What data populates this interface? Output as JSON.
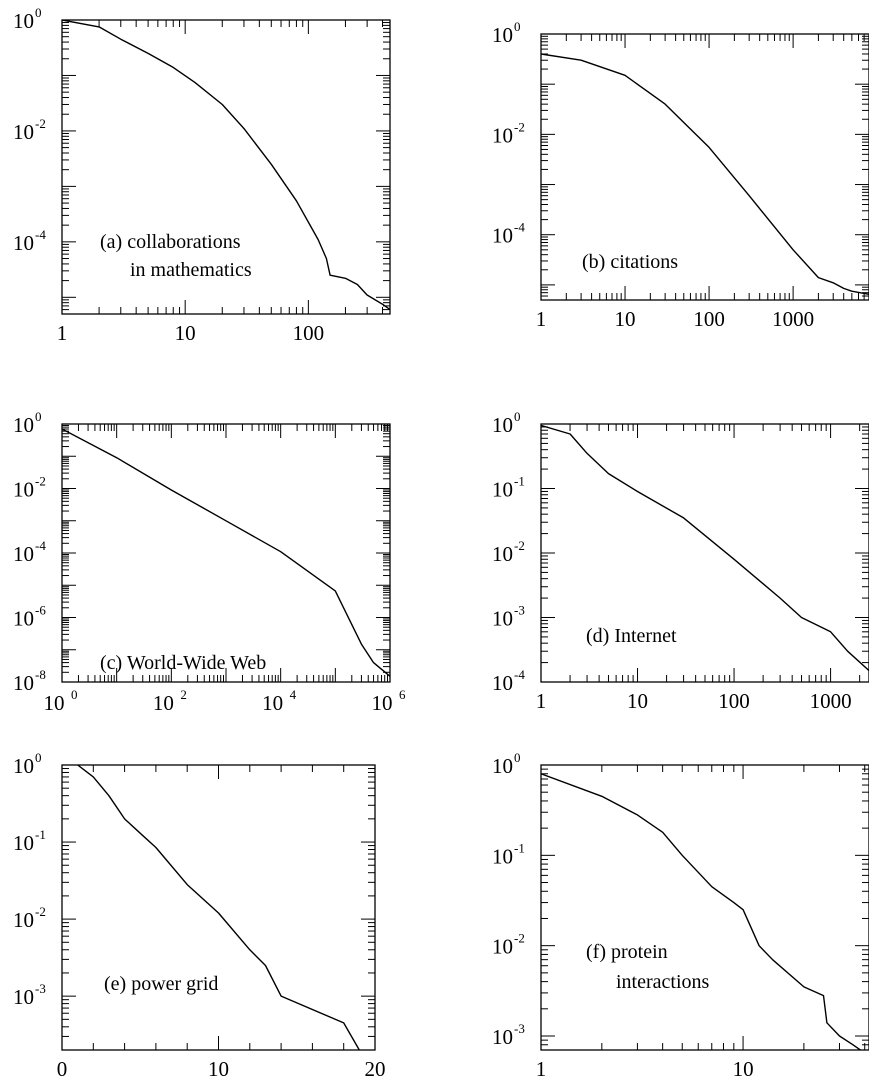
{
  "chart_data": [
    {
      "id": "a",
      "type": "line",
      "xscale": "log",
      "yscale": "log",
      "xlim": [
        1,
        460
      ],
      "ylim": [
        5e-06,
        1
      ],
      "xticks": [
        {
          "v": 1,
          "label": "1"
        },
        {
          "v": 10,
          "label": "10"
        },
        {
          "v": 100,
          "label": "100"
        }
      ],
      "yticks": [
        {
          "v": 1,
          "base": "10",
          "exp": "0"
        },
        {
          "v": 0.01,
          "base": "10",
          "exp": "-2"
        },
        {
          "v": 0.0001,
          "base": "10",
          "exp": "-4"
        }
      ],
      "annotation": [
        "(a) collaborations",
        "in mathematics"
      ],
      "x": [
        1,
        2,
        3,
        5,
        8,
        12,
        20,
        30,
        50,
        80,
        120,
        140,
        150,
        200,
        250,
        300,
        400,
        460
      ],
      "y": [
        1,
        0.75,
        0.45,
        0.25,
        0.14,
        0.075,
        0.03,
        0.011,
        0.0025,
        0.00055,
        0.00011,
        5e-05,
        2.5e-05,
        2.2e-05,
        1.7e-05,
        1.1e-05,
        7.5e-06,
        6e-06
      ]
    },
    {
      "id": "b",
      "type": "line",
      "xscale": "log",
      "yscale": "log",
      "xlim": [
        1,
        8000
      ],
      "ylim": [
        5e-06,
        1
      ],
      "xticks": [
        {
          "v": 1,
          "label": "1"
        },
        {
          "v": 10,
          "label": "10"
        },
        {
          "v": 100,
          "label": "100"
        },
        {
          "v": 1000,
          "label": "1000"
        }
      ],
      "yticks": [
        {
          "v": 1,
          "base": "10",
          "exp": "0"
        },
        {
          "v": 0.01,
          "base": "10",
          "exp": "-2"
        },
        {
          "v": 0.0001,
          "base": "10",
          "exp": "-4"
        }
      ],
      "annotation": [
        "(b) citations"
      ],
      "x": [
        1,
        3,
        10,
        30,
        100,
        300,
        1000,
        2000,
        3000,
        4000,
        5000,
        8000
      ],
      "y": [
        0.4,
        0.3,
        0.15,
        0.04,
        0.0055,
        0.0006,
        5e-05,
        1.4e-05,
        1.1e-05,
        8.5e-06,
        7.5e-06,
        6.5e-06
      ]
    },
    {
      "id": "c",
      "type": "line",
      "xscale": "log",
      "yscale": "log",
      "xlim": [
        1,
        1000000
      ],
      "ylim": [
        1e-08,
        1
      ],
      "xticks": [
        {
          "v": 1,
          "base": "10",
          "exp": "0"
        },
        {
          "v": 100,
          "base": "10",
          "exp": "2"
        },
        {
          "v": 10000,
          "base": "10",
          "exp": "4"
        },
        {
          "v": 1000000,
          "base": "10",
          "exp": "6"
        }
      ],
      "yticks": [
        {
          "v": 1,
          "base": "10",
          "exp": "0"
        },
        {
          "v": 0.01,
          "base": "10",
          "exp": "-2"
        },
        {
          "v": 0.0001,
          "base": "10",
          "exp": "-4"
        },
        {
          "v": 1e-06,
          "base": "10",
          "exp": "-6"
        },
        {
          "v": 1e-08,
          "base": "10",
          "exp": "-8"
        }
      ],
      "annotation": [
        "(c) World-Wide Web"
      ],
      "x": [
        1,
        10,
        100,
        1000,
        10000,
        100000,
        300000,
        500000,
        1000000
      ],
      "y": [
        0.7,
        0.09,
        0.009,
        0.001,
        0.00011,
        6.7e-06,
        1.5e-07,
        4e-08,
        1.5e-08
      ]
    },
    {
      "id": "d",
      "type": "line",
      "xscale": "log",
      "yscale": "log",
      "xlim": [
        1,
        2500
      ],
      "ylim": [
        0.0001,
        1
      ],
      "xticks": [
        {
          "v": 1,
          "label": "1"
        },
        {
          "v": 10,
          "label": "10"
        },
        {
          "v": 100,
          "label": "100"
        },
        {
          "v": 1000,
          "label": "1000"
        }
      ],
      "yticks": [
        {
          "v": 1,
          "base": "10",
          "exp": "0"
        },
        {
          "v": 0.1,
          "base": "10",
          "exp": "-1"
        },
        {
          "v": 0.01,
          "base": "10",
          "exp": "-2"
        },
        {
          "v": 0.001,
          "base": "10",
          "exp": "-3"
        },
        {
          "v": 0.0001,
          "base": "10",
          "exp": "-4"
        }
      ],
      "annotation": [
        "(d) Internet"
      ],
      "x": [
        1,
        2,
        3,
        5,
        10,
        30,
        100,
        300,
        500,
        1000,
        1500,
        2500
      ],
      "y": [
        0.95,
        0.7,
        0.35,
        0.17,
        0.09,
        0.035,
        0.008,
        0.002,
        0.001,
        0.0006,
        0.0003,
        0.00015
      ]
    },
    {
      "id": "e",
      "type": "line",
      "xscale": "linear",
      "yscale": "log",
      "xlim": [
        0,
        20
      ],
      "ylim": [
        0.0002,
        1
      ],
      "xticks": [
        {
          "v": 0,
          "label": "0"
        },
        {
          "v": 10,
          "label": "10"
        },
        {
          "v": 20,
          "label": "20"
        }
      ],
      "yticks": [
        {
          "v": 1,
          "base": "10",
          "exp": "0"
        },
        {
          "v": 0.1,
          "base": "10",
          "exp": "-1"
        },
        {
          "v": 0.01,
          "base": "10",
          "exp": "-2"
        },
        {
          "v": 0.001,
          "base": "10",
          "exp": "-3"
        }
      ],
      "annotation": [
        "(e) power grid"
      ],
      "x": [
        1,
        2,
        3,
        4,
        5,
        6,
        8,
        10,
        12,
        13,
        14,
        18,
        19
      ],
      "y": [
        1,
        0.7,
        0.4,
        0.2,
        0.13,
        0.085,
        0.028,
        0.012,
        0.004,
        0.0025,
        0.001,
        0.00045,
        0.0002
      ]
    },
    {
      "id": "f",
      "type": "line",
      "xscale": "log",
      "yscale": "log",
      "xlim": [
        1,
        42
      ],
      "ylim": [
        0.0007,
        1
      ],
      "xticks": [
        {
          "v": 1,
          "label": "1"
        },
        {
          "v": 10,
          "label": "10"
        }
      ],
      "yticks": [
        {
          "v": 1,
          "base": "10",
          "exp": "0"
        },
        {
          "v": 0.1,
          "base": "10",
          "exp": "-1"
        },
        {
          "v": 0.01,
          "base": "10",
          "exp": "-2"
        },
        {
          "v": 0.001,
          "base": "10",
          "exp": "-3"
        }
      ],
      "annotation": [
        "(f) protein",
        "interactions"
      ],
      "x": [
        1,
        2,
        3,
        4,
        5,
        7,
        9,
        10,
        12,
        14,
        20,
        25,
        26,
        30,
        35,
        42
      ],
      "y": [
        0.8,
        0.45,
        0.28,
        0.18,
        0.1,
        0.045,
        0.03,
        0.025,
        0.01,
        0.007,
        0.0035,
        0.0028,
        0.0014,
        0.001,
        0.0008,
        0.0006
      ]
    }
  ]
}
